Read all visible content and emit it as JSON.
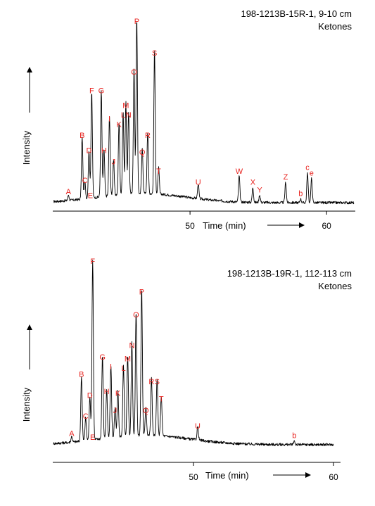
{
  "chart_data": [
    {
      "type": "line",
      "sample": "198-1213B-15R-1, 9-10 cm",
      "compound_class": "Ketones",
      "ylabel": "Intensity",
      "xlabel": "Time (min)",
      "xlim": [
        40,
        62
      ],
      "xticks": [
        50,
        60
      ],
      "ylim": [
        0,
        100
      ],
      "baseline": 3,
      "peaks": [
        {
          "label": "A",
          "x": 41.1,
          "y": 6
        },
        {
          "label": "B",
          "x": 42.1,
          "y": 36
        },
        {
          "label": "C",
          "x": 42.3,
          "y": 12
        },
        {
          "label": "D",
          "x": 42.6,
          "y": 28
        },
        {
          "label": "E",
          "x": 42.7,
          "y": 4
        },
        {
          "label": "F",
          "x": 42.8,
          "y": 60
        },
        {
          "label": "G",
          "x": 43.5,
          "y": 60
        },
        {
          "label": "H",
          "x": 43.7,
          "y": 28
        },
        {
          "label": "I",
          "x": 44.1,
          "y": 45
        },
        {
          "label": "J",
          "x": 44.4,
          "y": 22
        },
        {
          "label": "K",
          "x": 44.8,
          "y": 42
        },
        {
          "label": "L",
          "x": 45.1,
          "y": 47
        },
        {
          "label": "M",
          "x": 45.3,
          "y": 52
        },
        {
          "label": "N",
          "x": 45.5,
          "y": 47
        },
        {
          "label": "O",
          "x": 45.9,
          "y": 70
        },
        {
          "label": "P",
          "x": 46.1,
          "y": 97
        },
        {
          "label": "Q",
          "x": 46.5,
          "y": 27
        },
        {
          "label": "R",
          "x": 46.9,
          "y": 36
        },
        {
          "label": "S",
          "x": 47.4,
          "y": 80
        },
        {
          "label": "T",
          "x": 47.7,
          "y": 17
        },
        {
          "label": "U",
          "x": 50.6,
          "y": 11
        },
        {
          "label": "W",
          "x": 53.6,
          "y": 17
        },
        {
          "label": "X",
          "x": 54.6,
          "y": 11
        },
        {
          "label": "Y",
          "x": 55.1,
          "y": 7
        },
        {
          "label": "Z",
          "x": 57.0,
          "y": 14
        },
        {
          "label": "b",
          "x": 58.1,
          "y": 5
        },
        {
          "label": "c",
          "x": 58.6,
          "y": 19
        },
        {
          "label": "e",
          "x": 58.9,
          "y": 16
        }
      ]
    },
    {
      "type": "line",
      "sample": "198-1213B-19R-1, 112-113 cm",
      "compound_class": "Ketones",
      "ylabel": "Intensity",
      "xlabel": "Time (min)",
      "xlim": [
        40,
        60
      ],
      "xticks": [
        50,
        60
      ],
      "ylim": [
        0,
        100
      ],
      "baseline": 3,
      "peaks": [
        {
          "label": "A",
          "x": 41.3,
          "y": 6
        },
        {
          "label": "B",
          "x": 42.0,
          "y": 37
        },
        {
          "label": "C",
          "x": 42.3,
          "y": 15
        },
        {
          "label": "D",
          "x": 42.6,
          "y": 26
        },
        {
          "label": "E",
          "x": 42.8,
          "y": 4
        },
        {
          "label": "F",
          "x": 42.8,
          "y": 96
        },
        {
          "label": "G",
          "x": 43.5,
          "y": 46
        },
        {
          "label": "H",
          "x": 43.8,
          "y": 28
        },
        {
          "label": "I",
          "x": 44.1,
          "y": 41
        },
        {
          "label": "J",
          "x": 44.4,
          "y": 18
        },
        {
          "label": "K",
          "x": 44.6,
          "y": 27
        },
        {
          "label": "L",
          "x": 45.0,
          "y": 40
        },
        {
          "label": "M",
          "x": 45.3,
          "y": 45
        },
        {
          "label": "N",
          "x": 45.6,
          "y": 52
        },
        {
          "label": "O",
          "x": 45.9,
          "y": 68
        },
        {
          "label": "P",
          "x": 46.3,
          "y": 80
        },
        {
          "label": "Q",
          "x": 46.6,
          "y": 18
        },
        {
          "label": "R",
          "x": 47.0,
          "y": 33
        },
        {
          "label": "S",
          "x": 47.4,
          "y": 33
        },
        {
          "label": "T",
          "x": 47.7,
          "y": 24
        },
        {
          "label": "U",
          "x": 50.3,
          "y": 10
        },
        {
          "label": "b",
          "x": 57.2,
          "y": 5
        }
      ]
    }
  ]
}
